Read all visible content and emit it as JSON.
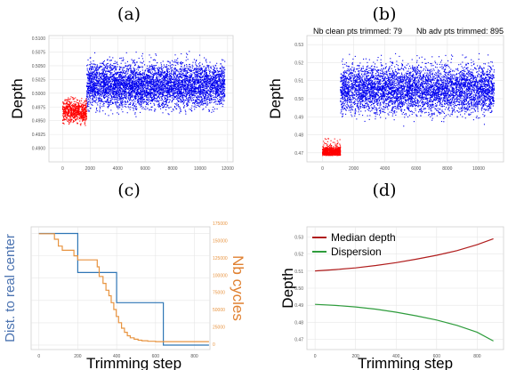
{
  "chart_data": [
    {
      "panel_label": "(a)",
      "type": "scatter",
      "title": "",
      "xlabel": "",
      "ylabel": "Depth",
      "xlim": [
        -1000,
        12400
      ],
      "ylim": [
        0.4875,
        0.5105
      ],
      "x_ticks": [
        "0",
        "2000",
        "4000",
        "6000",
        "8000",
        "10000",
        "12000"
      ],
      "y_ticks": [
        "0.4900",
        "0.4925",
        "0.4950",
        "0.4975",
        "0.5000",
        "0.5025",
        "0.5050",
        "0.5075",
        "0.5100"
      ],
      "grid": true,
      "series": [
        {
          "group": "red",
          "x_range": [
            0,
            1750
          ],
          "y_center": 0.4967,
          "y_spread": 0.001,
          "y_range": [
            0.4925,
            0.4995
          ]
        },
        {
          "group": "blue",
          "x_range": [
            1750,
            11800
          ],
          "y_center": 0.5015,
          "y_spread": 0.002,
          "y_range": [
            0.49,
            0.51
          ]
        }
      ],
      "colors": {
        "red": "#ff0000",
        "blue": "#0000ee"
      }
    },
    {
      "panel_label": "(b)",
      "type": "scatter",
      "title": "",
      "xlabel": "",
      "ylabel": "Depth",
      "xlim": [
        -1000,
        11600
      ],
      "ylim": [
        0.465,
        0.535
      ],
      "x_ticks": [
        "0",
        "2000",
        "4000",
        "6000",
        "8000",
        "10000"
      ],
      "y_ticks": [
        "0.47",
        "0.48",
        "0.49",
        "0.50",
        "0.51",
        "0.52",
        "0.53"
      ],
      "grid": true,
      "annotations": [
        "Nb clean pts trimmed: 79",
        "Nb adv pts trimmed: 895"
      ],
      "series": [
        {
          "group": "red",
          "x_range": [
            0,
            1150
          ],
          "y_center": 0.4705,
          "y_spread": 0.0015,
          "y_range": [
            0.4685,
            0.478
          ]
        },
        {
          "group": "blue",
          "x_range": [
            1150,
            11000
          ],
          "y_center": 0.5055,
          "y_spread": 0.0065,
          "y_range": [
            0.482,
            0.532
          ]
        }
      ],
      "colors": {
        "red": "#ff0000",
        "blue": "#0000ee"
      }
    },
    {
      "panel_label": "(c)",
      "type": "line",
      "title": "",
      "xlabel": "Trimming step",
      "ylabel": "Dist. to real center",
      "ylabel_right": "Nb cycles",
      "xlim": [
        -40,
        880
      ],
      "x_ticks": [
        "0",
        "200",
        "400",
        "600",
        "800"
      ],
      "y_ticks": [
        "",
        "",
        "",
        "",
        "",
        ""
      ],
      "y_ticks_right": [
        "0",
        "25000",
        "50000",
        "75000",
        "100000",
        "125000",
        "150000",
        "175000"
      ],
      "grid": true,
      "series": [
        {
          "axis": "left",
          "x": [
            0,
            200,
            200,
            400,
            400,
            640,
            640,
            875
          ],
          "y": [
            1.0,
            1.0,
            0.65,
            0.65,
            0.38,
            0.38,
            0.0,
            0.0
          ]
        },
        {
          "axis": "right",
          "x": [
            0,
            80,
            80,
            100,
            100,
            120,
            120,
            180,
            180,
            200,
            200,
            300,
            300,
            310,
            310,
            330,
            330,
            345,
            345,
            360,
            360,
            372,
            372,
            385,
            385,
            398,
            398,
            410,
            410,
            425,
            425,
            440,
            440,
            455,
            455,
            470,
            470,
            490,
            490,
            510,
            510,
            530,
            530,
            560,
            560,
            600,
            600,
            875
          ],
          "y": [
            160000,
            160000,
            152000,
            152000,
            142000,
            142000,
            136000,
            136000,
            128000,
            128000,
            122000,
            122000,
            112000,
            112000,
            98000,
            98000,
            88000,
            88000,
            78000,
            78000,
            70000,
            70000,
            60000,
            60000,
            50000,
            50000,
            40000,
            40000,
            31000,
            31000,
            23000,
            23000,
            17000,
            17000,
            12000,
            12000,
            9000,
            9000,
            7000,
            7000,
            5500,
            5500,
            4800,
            4800,
            4000,
            4000,
            3500,
            3500
          ]
        }
      ],
      "ylim_left": [
        -0.04,
        1.06
      ],
      "ylim_right": [
        -8000,
        170000
      ],
      "colors": {
        "left": "#2f76b5",
        "right": "#e89440"
      }
    },
    {
      "panel_label": "(d)",
      "type": "line",
      "title": "",
      "xlabel": "Trimming step",
      "ylabel": "Depth",
      "xlim": [
        -40,
        930
      ],
      "ylim": [
        0.464,
        0.536
      ],
      "x_ticks": [
        "0",
        "200",
        "400",
        "600",
        "800"
      ],
      "y_ticks": [
        "0.47",
        "0.48",
        "0.49",
        "0.50",
        "0.51",
        "0.52",
        "0.53"
      ],
      "grid": true,
      "legend": "top-left",
      "series": [
        {
          "name": "Median depth",
          "x": [
            0,
            100,
            200,
            300,
            400,
            500,
            600,
            700,
            800,
            880
          ],
          "y": [
            0.5101,
            0.5109,
            0.5119,
            0.5133,
            0.515,
            0.517,
            0.5193,
            0.522,
            0.5255,
            0.529
          ]
        },
        {
          "name": "Dispersion",
          "x": [
            0,
            100,
            200,
            300,
            400,
            500,
            600,
            700,
            800,
            880
          ],
          "y": [
            0.4905,
            0.4899,
            0.489,
            0.4877,
            0.4859,
            0.4838,
            0.4813,
            0.4782,
            0.4741,
            0.469
          ]
        }
      ],
      "colors": {
        "Median depth": "#b01c1c",
        "Dispersion": "#2e9c3c"
      }
    }
  ]
}
